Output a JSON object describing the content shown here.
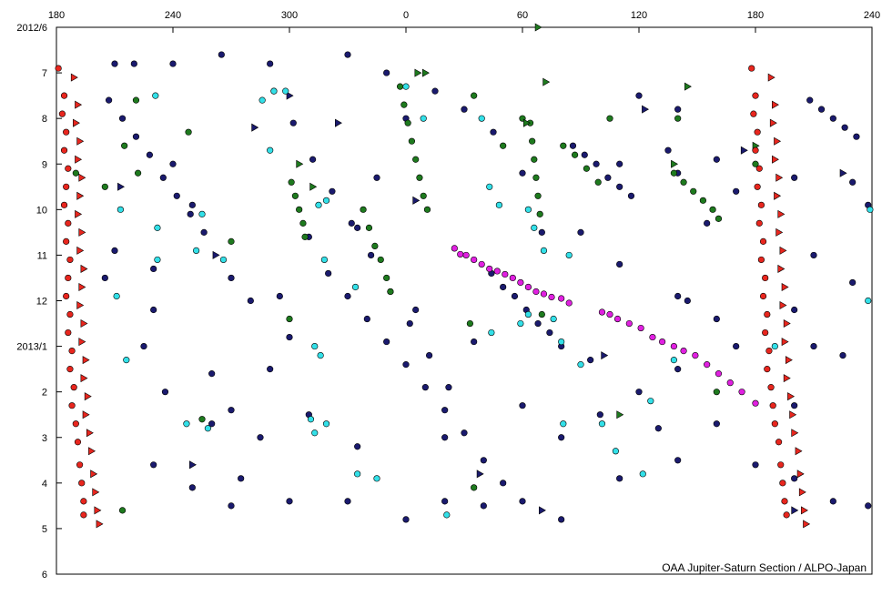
{
  "chart_data": {
    "type": "scatter",
    "annotation": "OAA Jupiter-Saturn Section / ALPO-Japan",
    "xlim": [
      180,
      600
    ],
    "ylim": [
      0,
      12
    ],
    "y_inverted": true,
    "xticks": [
      180,
      240,
      300,
      {
        "value": 360,
        "label": "0"
      },
      {
        "value": 420,
        "label": "60"
      },
      {
        "value": 480,
        "label": "120"
      },
      {
        "value": 540,
        "label": "180"
      },
      {
        "value": 600,
        "label": "240"
      }
    ],
    "yticks": [
      {
        "value": 0,
        "label": "2012/6"
      },
      {
        "value": 1,
        "label": "7"
      },
      {
        "value": 2,
        "label": "8"
      },
      {
        "value": 3,
        "label": "9"
      },
      {
        "value": 4,
        "label": "10"
      },
      {
        "value": 5,
        "label": "11"
      },
      {
        "value": 6,
        "label": "12"
      },
      {
        "value": 7,
        "label": "2013/1"
      },
      {
        "value": 8,
        "label": "2"
      },
      {
        "value": 9,
        "label": "3"
      },
      {
        "value": 10,
        "label": "4"
      },
      {
        "value": 11,
        "label": "5"
      },
      {
        "value": 12,
        "label": "6"
      }
    ],
    "series": [
      {
        "color": "#1a1a6e",
        "marker": "circle",
        "x": [
          292,
          302,
          312,
          322,
          332,
          342,
          352,
          362,
          372,
          382,
          207,
          214,
          221,
          228,
          235,
          242,
          249,
          256,
          320,
          330,
          340,
          350,
          360,
          370,
          380,
          390,
          446,
          452,
          458,
          464,
          470,
          476,
          568,
          574,
          580,
          586,
          592,
          404,
          410,
          416,
          422,
          428,
          434,
          440,
          210,
          220,
          240,
          265,
          290,
          330,
          350,
          240,
          250,
          230,
          225,
          236,
          260,
          275,
          250,
          270,
          300,
          330,
          360,
          380,
          400,
          420,
          440,
          470,
          500,
          520,
          560,
          580,
          598,
          230,
          210,
          205,
          280,
          310,
          270,
          290,
          360,
          375,
          390,
          405,
          420,
          430,
          450,
          470,
          500,
          520,
          530,
          500,
          480,
          460,
          440,
          420,
          400,
          380,
          410,
          470,
          500,
          520,
          530,
          560,
          590,
          570,
          590,
          570,
          560,
          480,
          500,
          495,
          515,
          505,
          490,
          455,
          345,
          335,
          310,
          295,
          285,
          260,
          230,
          335,
          365,
          395,
          540,
          560,
          585,
          598,
          300,
          270
        ],
        "y": [
          1.4,
          2.1,
          2.9,
          3.6,
          4.3,
          5.0,
          5.8,
          6.5,
          7.2,
          7.9,
          1.6,
          2.0,
          2.4,
          2.8,
          3.3,
          3.7,
          4.1,
          4.5,
          5.4,
          5.9,
          6.4,
          6.9,
          7.4,
          7.9,
          8.4,
          8.9,
          2.6,
          2.8,
          3.0,
          3.3,
          3.5,
          3.7,
          1.6,
          1.8,
          2.0,
          2.2,
          2.4,
          5.4,
          5.7,
          5.9,
          6.2,
          6.5,
          6.7,
          7.0,
          0.8,
          0.8,
          0.8,
          0.6,
          0.8,
          0.6,
          1.0,
          3.0,
          3.9,
          6.2,
          7.0,
          8.0,
          8.7,
          9.9,
          10.1,
          10.5,
          10.4,
          10.4,
          10.8,
          10.4,
          10.5,
          10.4,
          10.8,
          9.9,
          9.5,
          8.7,
          9.9,
          10.4,
          10.5,
          5.3,
          4.9,
          5.5,
          6.0,
          8.5,
          8.4,
          7.5,
          2.0,
          1.4,
          1.8,
          2.3,
          3.2,
          4.5,
          4.5,
          5.2,
          5.9,
          6.4,
          7.0,
          7.5,
          8.0,
          8.5,
          9.0,
          8.3,
          9.5,
          9.0,
          10.0,
          3.0,
          3.2,
          2.9,
          3.6,
          3.3,
          3.4,
          5.0,
          5.6,
          7.0,
          6.2,
          1.5,
          1.8,
          2.7,
          4.3,
          6.0,
          8.8,
          7.3,
          3.3,
          4.4,
          4.6,
          5.9,
          9.0,
          7.6,
          9.6,
          9.2,
          6.2,
          6.9,
          9.6,
          8.3,
          7.2,
          3.9,
          6.8,
          5.5
        ]
      },
      {
        "color": "#1a1a6e",
        "marker": "triangle",
        "x": [
          213,
          262,
          282,
          300,
          325,
          398,
          462,
          483,
          534,
          560,
          585,
          430,
          365,
          250
        ],
        "y": [
          3.5,
          5.0,
          2.2,
          1.5,
          2.1,
          9.8,
          7.2,
          1.8,
          2.7,
          10.6,
          3.2,
          10.6,
          3.8,
          9.6
        ]
      },
      {
        "color": "#1e7a1e",
        "marker": "circle",
        "x": [
          357,
          359,
          361,
          363,
          365,
          367,
          369,
          371,
          424,
          425,
          426,
          427,
          428,
          429,
          301,
          303,
          305,
          307,
          308,
          338,
          341,
          344,
          347,
          350,
          352,
          498,
          503,
          508,
          513,
          518,
          521,
          441,
          447,
          453,
          459,
          215,
          221,
          248,
          222,
          190,
          205,
          255,
          214,
          395,
          270,
          300,
          520,
          540,
          395,
          410,
          420,
          393,
          430,
          465,
          500
        ],
        "y": [
          1.3,
          1.7,
          2.1,
          2.5,
          2.9,
          3.3,
          3.7,
          4.0,
          2.1,
          2.5,
          2.9,
          3.3,
          3.7,
          4.1,
          3.4,
          3.7,
          4.0,
          4.3,
          4.6,
          4.0,
          4.4,
          4.8,
          5.1,
          5.5,
          5.8,
          3.2,
          3.4,
          3.6,
          3.8,
          4.0,
          4.2,
          2.6,
          2.8,
          3.1,
          3.4,
          2.6,
          1.6,
          2.3,
          3.2,
          3.2,
          3.5,
          8.6,
          10.6,
          10.1,
          4.7,
          6.4,
          8.0,
          3.0,
          1.5,
          2.6,
          2.0,
          6.5,
          6.3,
          2.0,
          2.0
        ]
      },
      {
        "color": "#1e7a1e",
        "marker": "triangle",
        "x": [
          366,
          370,
          428,
          422,
          305,
          312,
          498,
          505,
          540,
          470,
          432
        ],
        "y": [
          1.0,
          1.0,
          0.0,
          2.1,
          3.0,
          3.5,
          3.0,
          1.3,
          2.6,
          8.5,
          1.2
        ]
      },
      {
        "color": "#33e0e8",
        "marker": "circle",
        "x": [
          231,
          292,
          298,
          286,
          360,
          369,
          399,
          290,
          315,
          319,
          403,
          408,
          423,
          426,
          213,
          232,
          252,
          255,
          266,
          232,
          318,
          334,
          211,
          216,
          313,
          316,
          247,
          258,
          311,
          319,
          313,
          431,
          444,
          419,
          423,
          436,
          440,
          450,
          486,
          498,
          441,
          550,
          599,
          598,
          335,
          345,
          381,
          468,
          482,
          461,
          404
        ],
        "y": [
          1.5,
          1.4,
          1.4,
          1.6,
          1.3,
          2.0,
          2.0,
          2.7,
          3.9,
          3.8,
          3.5,
          3.9,
          4.0,
          4.4,
          4.0,
          4.4,
          4.9,
          4.1,
          5.1,
          5.1,
          5.1,
          5.7,
          5.9,
          7.3,
          7.0,
          7.2,
          8.7,
          8.8,
          8.6,
          8.7,
          8.9,
          4.9,
          5.0,
          6.5,
          6.3,
          6.4,
          6.9,
          7.4,
          8.2,
          7.3,
          8.7,
          7.0,
          4.0,
          6.0,
          9.8,
          9.9,
          10.7,
          9.3,
          9.8,
          8.7,
          6.7
        ]
      },
      {
        "color": "#e020e0",
        "marker": "circle",
        "x": [
          385,
          388,
          391,
          395,
          399,
          403,
          407,
          411,
          415,
          419,
          423,
          427,
          431,
          435,
          440,
          444,
          461,
          465,
          469,
          475,
          481,
          487,
          492,
          498,
          503,
          509,
          515,
          521,
          527,
          533,
          540
        ],
        "y": [
          4.85,
          4.98,
          5.0,
          5.1,
          5.2,
          5.3,
          5.35,
          5.42,
          5.5,
          5.6,
          5.7,
          5.8,
          5.85,
          5.92,
          5.95,
          6.05,
          6.25,
          6.3,
          6.4,
          6.5,
          6.6,
          6.8,
          6.9,
          7.0,
          7.1,
          7.2,
          7.4,
          7.6,
          7.8,
          8.0,
          8.25
        ]
      },
      {
        "color": "#e8261e",
        "marker": "circle",
        "x": [
          181,
          184,
          183,
          185,
          184,
          186,
          185,
          184,
          186,
          185,
          187,
          186,
          185,
          187,
          186,
          188,
          187,
          189,
          188,
          190,
          191,
          192,
          193,
          194,
          194,
          538,
          540,
          539,
          541,
          540,
          542,
          541,
          543,
          542,
          544,
          543,
          545,
          544,
          546,
          545,
          547,
          546,
          548,
          549,
          550,
          552,
          553,
          554,
          555,
          556
        ],
        "y": [
          0.9,
          1.5,
          1.9,
          2.3,
          2.7,
          3.1,
          3.5,
          3.9,
          4.3,
          4.7,
          5.1,
          5.5,
          5.9,
          6.3,
          6.7,
          7.1,
          7.5,
          7.9,
          8.3,
          8.7,
          9.1,
          9.6,
          10.0,
          10.4,
          10.7,
          0.9,
          1.5,
          1.9,
          2.3,
          2.7,
          3.1,
          3.5,
          3.9,
          4.3,
          4.7,
          5.1,
          5.5,
          5.9,
          6.3,
          6.7,
          7.1,
          7.5,
          7.9,
          8.3,
          8.7,
          9.1,
          9.6,
          10.0,
          10.4,
          10.7
        ]
      },
      {
        "color": "#e8261e",
        "marker": "triangle",
        "x": [
          189,
          191,
          190,
          192,
          191,
          193,
          192,
          191,
          193,
          192,
          194,
          193,
          192,
          194,
          193,
          195,
          194,
          196,
          195,
          197,
          198,
          199,
          200,
          201,
          202,
          548,
          550,
          549,
          551,
          550,
          552,
          551,
          553,
          552,
          554,
          553,
          555,
          554,
          556,
          555,
          557,
          556,
          558,
          559,
          560,
          562,
          563,
          564,
          565,
          566
        ],
        "y": [
          1.1,
          1.7,
          2.1,
          2.5,
          2.9,
          3.3,
          3.7,
          4.1,
          4.5,
          4.9,
          5.3,
          5.7,
          6.1,
          6.5,
          6.9,
          7.3,
          7.7,
          8.1,
          8.5,
          8.9,
          9.3,
          9.8,
          10.2,
          10.6,
          10.9,
          1.1,
          1.7,
          2.1,
          2.5,
          2.9,
          3.3,
          3.7,
          4.1,
          4.5,
          4.9,
          5.3,
          5.7,
          6.1,
          6.5,
          6.9,
          7.3,
          7.7,
          8.1,
          8.5,
          8.9,
          9.3,
          9.8,
          10.2,
          10.6,
          10.9
        ]
      }
    ]
  }
}
